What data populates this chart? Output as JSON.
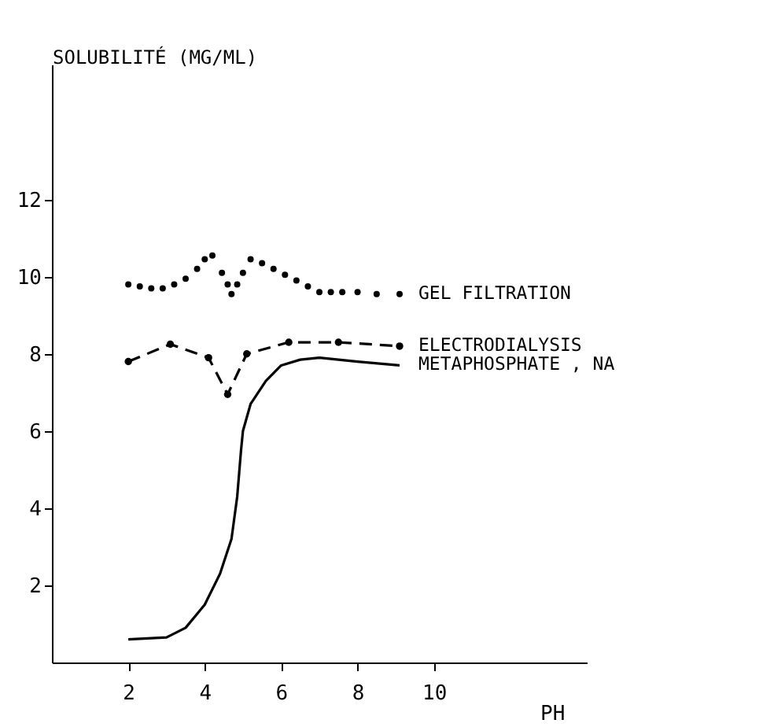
{
  "chart_data": {
    "type": "line",
    "xlabel": "PH",
    "ylabel": "SOLUBILITÉ (MG/ML)",
    "xlim": [
      0,
      14
    ],
    "ylim": [
      0,
      15.5
    ],
    "xticks": [
      2,
      4,
      6,
      8,
      10
    ],
    "yticks": [
      2,
      4,
      6,
      8,
      10,
      12
    ],
    "grid": false,
    "legend": false,
    "series": [
      {
        "name": "GEL FILTRATION",
        "type": "scatter",
        "marker": "circle",
        "color": "#000000",
        "x": [
          2,
          2.3,
          2.6,
          2.9,
          3.2,
          3.5,
          3.8,
          4.0,
          4.2,
          4.45,
          4.6,
          4.7,
          4.85,
          5.0,
          5.2,
          5.5,
          5.8,
          6.1,
          6.4,
          6.7,
          7.0,
          7.3,
          7.6,
          8.0,
          8.5,
          9.1
        ],
        "values": [
          9.8,
          9.75,
          9.7,
          9.7,
          9.8,
          9.95,
          10.2,
          10.45,
          10.55,
          10.1,
          9.8,
          9.55,
          9.8,
          10.1,
          10.45,
          10.35,
          10.2,
          10.05,
          9.9,
          9.75,
          9.6,
          9.6,
          9.6,
          9.6,
          9.55,
          9.55
        ]
      },
      {
        "name": "ELECTRODIALYSIS",
        "type": "line",
        "marker": "circle",
        "line_style": "dashed",
        "color": "#000000",
        "x": [
          2,
          3.1,
          4.1,
          4.6,
          5.1,
          6.2,
          7.5,
          9.1
        ],
        "values": [
          7.8,
          8.25,
          7.9,
          6.95,
          8.0,
          8.3,
          8.3,
          8.2
        ]
      },
      {
        "name": "METAPHOSPHATE , NA",
        "marker": "none",
        "line_style": "solid",
        "color": "#000000",
        "x": [
          2,
          3,
          3.5,
          4,
          4.4,
          4.7,
          4.85,
          4.95,
          5.0,
          5.2,
          5.6,
          6,
          6.5,
          7,
          8,
          9.1
        ],
        "values": [
          0.6,
          0.65,
          0.9,
          1.5,
          2.3,
          3.2,
          4.3,
          5.5,
          6.0,
          6.7,
          7.3,
          7.7,
          7.85,
          7.9,
          7.8,
          7.7
        ]
      }
    ]
  }
}
